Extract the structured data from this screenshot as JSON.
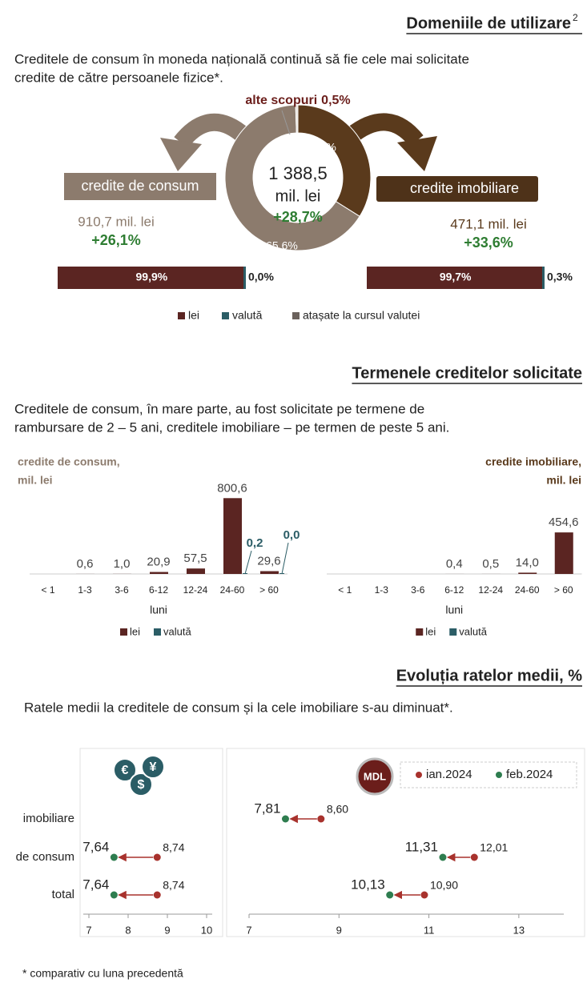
{
  "sections": [
    {
      "title": "Domeniile de utilizare",
      "title_sup": "2",
      "text": [
        "Creditele de consum în moneda națională continuă să fie cele mai solicitate",
        "credite de către persoanele fizice*."
      ]
    },
    {
      "title": "Termenele creditelor solicitate",
      "text": [
        "Creditele de consum, în mare parte, au fost solicitate pe termene de",
        "rambursare de 2 – 5 ani, creditele imobiliare – pe termen de peste 5 ani."
      ]
    },
    {
      "title": "Evoluția ratelor medii, %",
      "text": [
        "Ratele medii la creditele de consum și la cele imobiliare s-au diminuat*."
      ]
    }
  ],
  "footnote": "* comparativ cu luna precedentă",
  "chart_data": [
    {
      "type": "pie",
      "categories": [
        "credite imobiliare",
        "credite de consum",
        "alte scopuri"
      ],
      "values": [
        33.9,
        65.6,
        0.5
      ],
      "value_labels": [
        "33,9%",
        "65,6%",
        "0,5%"
      ],
      "colors": [
        "#5a3a1c",
        "#8c7b6d",
        "#e6e0da"
      ],
      "center": [
        "1 388,5",
        "mil. lei"
      ],
      "center_change": "+28,7%",
      "details": [
        {
          "amount": "471,1 mil. lei",
          "change": "+33,6%"
        },
        {
          "amount": "910,7 mil. lei",
          "change": "+26,1%"
        }
      ]
    },
    {
      "type": "stacked_hbar",
      "xlim": [
        0,
        100
      ],
      "series": [
        {
          "name": "lei",
          "color": "#5b2522",
          "values": [
            99.7,
            99.9
          ],
          "value_labels": [
            "99,7%",
            "99,9%"
          ]
        },
        {
          "name": "valută",
          "color": "#2b5d66",
          "values": [
            0.3,
            0.0
          ],
          "value_labels": [
            "0,3%",
            "0,0%"
          ]
        },
        {
          "name": "atașate la cursul valutei",
          "color": "#6b625c",
          "values": [
            0,
            0
          ]
        }
      ]
    },
    {
      "type": "bar",
      "title": [
        "credite de consum,",
        "mil. lei"
      ],
      "title_color": "#8c7b6d",
      "side": "left",
      "categories": [
        "< 1",
        "1-3",
        "3-6",
        "6-12",
        "12-24",
        "24-60",
        "> 60"
      ],
      "xlabel": "luni",
      "ylim": [
        0,
        820
      ],
      "series": [
        {
          "name": "lei",
          "color": "#5b2522",
          "values": [
            null,
            0.6,
            1.0,
            20.9,
            57.5,
            800.6,
            29.6
          ],
          "value_labels": [
            null,
            "0,6",
            "1,0",
            "20,9",
            "57,5",
            "800,6",
            "29,6"
          ]
        },
        {
          "name": "valută",
          "color": "#2b5d66",
          "values": [
            null,
            null,
            null,
            null,
            null,
            0.2,
            0.0
          ],
          "value_labels": [
            null,
            null,
            null,
            null,
            null,
            "0,2",
            "0,0"
          ]
        }
      ]
    },
    {
      "type": "bar",
      "title": [
        "credite imobiliare,",
        "mil. lei"
      ],
      "title_color": "#5a3a1c",
      "side": "right",
      "categories": [
        "< 1",
        "1-3",
        "3-6",
        "6-12",
        "12-24",
        "24-60",
        "> 60"
      ],
      "xlabel": "luni",
      "ylim": [
        0,
        850
      ],
      "series": [
        {
          "name": "lei",
          "color": "#5b2522",
          "values": [
            null,
            null,
            null,
            0.4,
            0.5,
            14.0,
            454.6
          ],
          "value_labels": [
            null,
            null,
            null,
            "0,4",
            "0,5",
            "14,0",
            "454,6"
          ]
        },
        {
          "name": "valută",
          "color": "#2b5d66",
          "values": [
            null,
            null,
            null,
            null,
            null,
            null,
            null
          ]
        }
      ]
    },
    {
      "type": "dumbbell",
      "icon": [
        "€",
        "$",
        "¥"
      ],
      "categories": [
        "imobiliare",
        "de consum",
        "total"
      ],
      "xlim": [
        7,
        10
      ],
      "xticks": [
        7,
        8,
        9,
        10
      ],
      "series": [
        {
          "color": "#a8322d",
          "values": [
            null,
            8.74,
            8.74
          ],
          "value_labels": [
            null,
            "8,74",
            "8,74"
          ]
        },
        {
          "color": "#2e7d4f",
          "values": [
            null,
            7.64,
            7.64
          ],
          "value_labels": [
            null,
            "7,64",
            "7,64"
          ]
        }
      ]
    },
    {
      "type": "dumbbell",
      "badge": "MDL",
      "xlim": [
        7,
        14
      ],
      "xticks": [
        7,
        9,
        11,
        13
      ],
      "series": [
        {
          "name": "ian.2024",
          "color": "#a8322d",
          "values": [
            8.6,
            12.01,
            10.9
          ],
          "value_labels": [
            "8,60",
            "12,01",
            "10,90"
          ]
        },
        {
          "name": "feb.2024",
          "color": "#2e7d4f",
          "values": [
            7.81,
            11.31,
            10.13
          ],
          "value_labels": [
            "7,81",
            "11,31",
            "10,13"
          ]
        }
      ]
    }
  ]
}
